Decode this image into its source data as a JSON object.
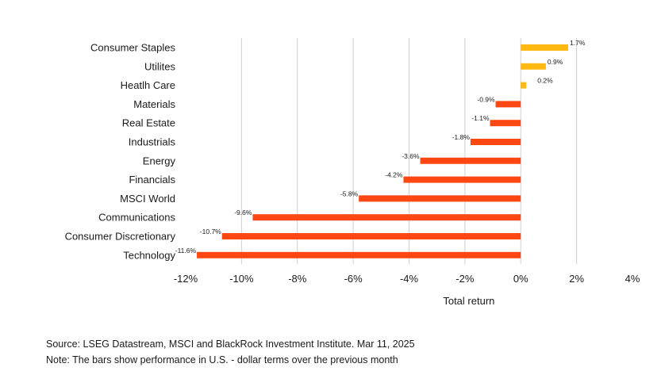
{
  "chart_data": {
    "type": "bar",
    "orientation": "horizontal",
    "categories": [
      "Consumer Staples",
      "Utilites",
      "Heatlh Care",
      "Materials",
      "Real Estate",
      "Industrials",
      "Energy",
      "Financials",
      "MSCI World",
      "Communications",
      "Consumer Discretionary",
      "Technology"
    ],
    "values": [
      1.7,
      0.9,
      0.2,
      -0.9,
      -1.1,
      -1.8,
      -3.6,
      -4.2,
      -5.8,
      -9.6,
      -10.7,
      -11.6
    ],
    "value_labels": [
      "1.7%",
      "0.9%",
      "0.2%",
      "-0.9%",
      "-1.1%",
      "-1.8%",
      "-3.6%",
      "-4.2%",
      "-5.8%",
      "-9.6%",
      "-10.7%",
      "-11.6%"
    ],
    "xlim": [
      -12,
      4
    ],
    "xticks": [
      -12,
      -10,
      -8,
      -6,
      -4,
      -2,
      0,
      2,
      4
    ],
    "xtick_labels": [
      "-12%",
      "-10%",
      "-8%",
      "-6%",
      "-4%",
      "-2%",
      "0%",
      "2%",
      "4%"
    ],
    "xlabel": "Total return",
    "ylabel": "",
    "title": "",
    "grid": "vertical",
    "colors": {
      "positive": "#fdb912",
      "negative": "#ff4713",
      "grid": "#cfcfcf"
    }
  },
  "footnotes": {
    "source": "Source: LSEG Datastream, MSCI and BlackRock Investment Institute. Mar 11, 2025",
    "note": "Note: The bars show performance in U.S. - dollar terms over the previous month"
  }
}
